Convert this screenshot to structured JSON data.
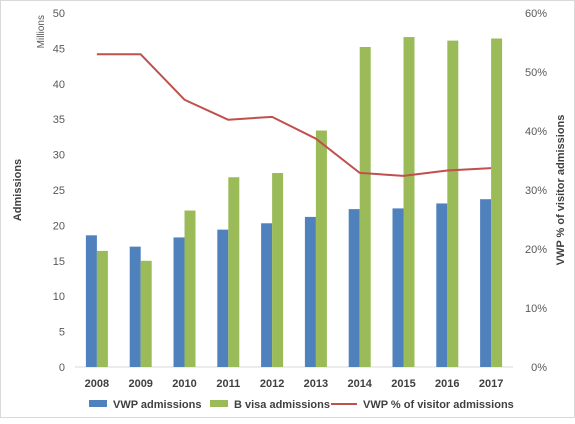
{
  "chart_data": {
    "type": "bar",
    "categories": [
      "2008",
      "2009",
      "2010",
      "2011",
      "2012",
      "2013",
      "2014",
      "2015",
      "2016",
      "2017"
    ],
    "series": [
      {
        "name": "VWP admissions",
        "type": "bar",
        "axis": "left",
        "color": "#4f81bd",
        "values": [
          18.6,
          17.0,
          18.3,
          19.4,
          20.3,
          21.2,
          22.3,
          22.4,
          23.1,
          23.7
        ]
      },
      {
        "name": "B visa admissions",
        "type": "bar",
        "axis": "left",
        "color": "#9bbb59",
        "values": [
          16.4,
          15.0,
          22.1,
          26.8,
          27.4,
          33.4,
          45.2,
          46.6,
          46.1,
          46.4
        ]
      },
      {
        "name": "VWP % of visitor admissions",
        "type": "line",
        "axis": "right",
        "color": "#c0504d",
        "values": [
          53.0,
          53.0,
          45.3,
          41.9,
          42.4,
          38.7,
          32.9,
          32.4,
          33.3,
          33.7
        ]
      }
    ],
    "ylabel": "Admissions",
    "ylabel_units": "Millions",
    "y2label": "VWP % of visitor admissions",
    "ylim": [
      0,
      50
    ],
    "yticks": [
      "0",
      "5",
      "10",
      "15",
      "20",
      "25",
      "30",
      "35",
      "40",
      "45",
      "50"
    ],
    "y2lim": [
      0,
      60
    ],
    "y2ticks": [
      "0%",
      "10%",
      "20%",
      "30%",
      "40%",
      "50%",
      "60%"
    ],
    "grid": false,
    "legend": "bottom"
  }
}
